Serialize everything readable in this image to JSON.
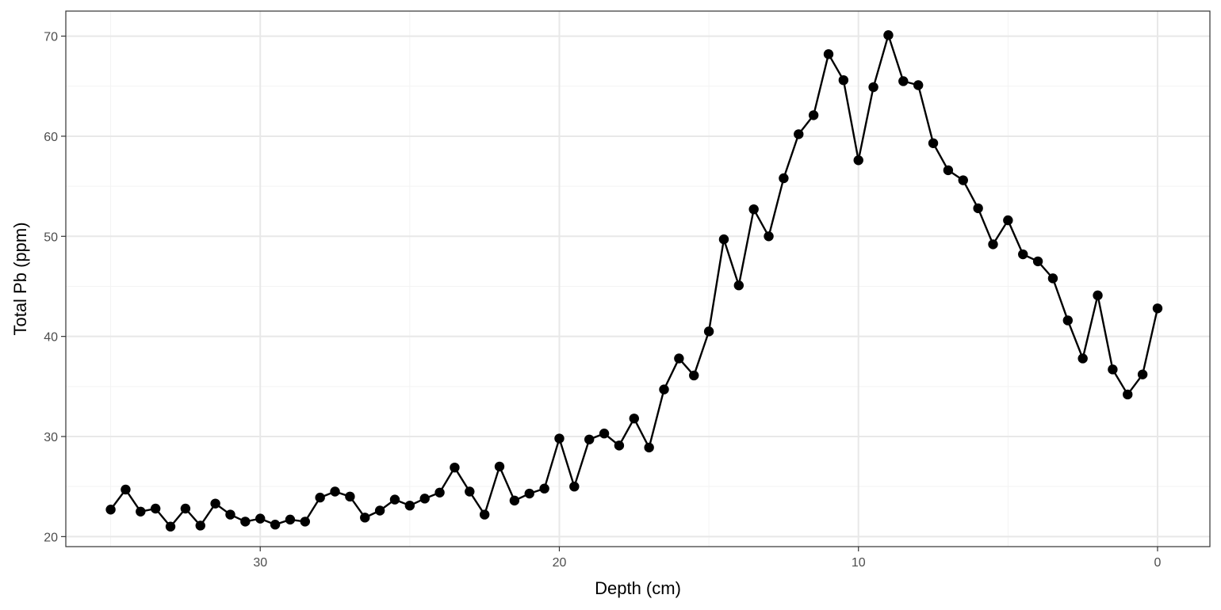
{
  "chart_data": {
    "type": "line",
    "title": "",
    "xlabel": "Depth (cm)",
    "ylabel": "Total Pb (ppm)",
    "x_reversed": true,
    "xlim": [
      36.5,
      -1.75
    ],
    "ylim": [
      19.0,
      72.5
    ],
    "x_ticks": [
      30,
      20,
      10,
      0
    ],
    "x_tick_labels": [
      "30",
      "20",
      "10",
      "0"
    ],
    "y_ticks": [
      20,
      30,
      40,
      50,
      60,
      70
    ],
    "y_tick_labels": [
      "20",
      "30",
      "40",
      "50",
      "60",
      "70"
    ],
    "grid": true,
    "legend": "none",
    "colors": {
      "line": "#000000",
      "point": "#000000"
    },
    "series": [
      {
        "x": [
          35,
          34.5,
          34,
          33.5,
          33,
          32.5,
          32,
          31.5,
          31,
          30.5,
          30,
          29.5,
          29,
          28.5,
          28,
          27.5,
          27,
          26.5,
          26,
          25.5,
          25,
          24.5,
          24,
          23.5,
          23,
          22.5,
          22,
          21.5,
          21,
          20.5,
          20,
          19.5,
          19,
          18.5,
          18,
          17.5,
          17,
          16.5,
          16,
          15.5,
          15,
          14.5,
          14,
          13.5,
          13,
          12.5,
          12,
          11.5,
          11,
          10.5,
          10,
          9.5,
          9,
          8.5,
          8,
          7.5,
          7,
          6.5,
          6,
          5.5,
          5,
          4.5,
          4,
          3.5,
          3,
          2.5,
          2,
          1.5,
          1,
          0.5,
          0
        ],
        "y": [
          22.7,
          24.7,
          22.5,
          22.8,
          21.0,
          22.8,
          21.1,
          23.3,
          22.2,
          21.5,
          21.8,
          21.2,
          21.7,
          21.5,
          23.9,
          24.5,
          24.0,
          21.9,
          22.6,
          23.7,
          23.1,
          23.8,
          24.4,
          26.9,
          24.5,
          22.2,
          27.0,
          23.6,
          24.3,
          24.8,
          29.8,
          25.0,
          29.7,
          30.3,
          29.1,
          31.8,
          28.9,
          34.7,
          37.8,
          36.1,
          40.5,
          49.7,
          45.1,
          52.7,
          50.0,
          55.8,
          60.2,
          62.1,
          68.2,
          65.6,
          57.6,
          64.9,
          70.1,
          65.5,
          65.1,
          59.3,
          56.6,
          55.6,
          52.8,
          49.2,
          51.6,
          48.2,
          47.5,
          45.8,
          41.6,
          37.8,
          44.1,
          36.7,
          34.2,
          36.2,
          42.8
        ]
      }
    ]
  }
}
